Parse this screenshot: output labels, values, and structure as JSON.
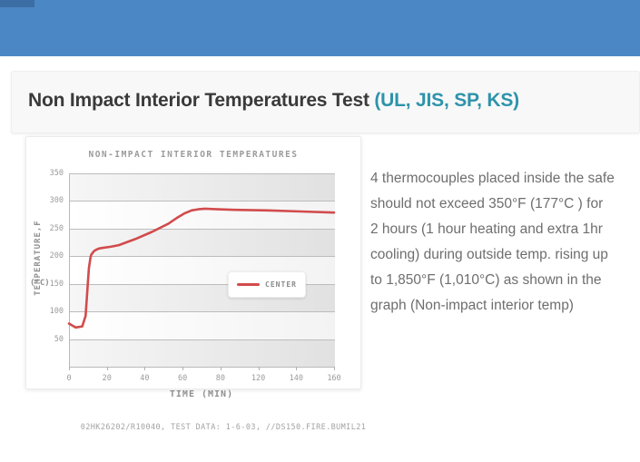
{
  "banner": {
    "color": "#4c87c5"
  },
  "header": {
    "title_main": "Non Impact Interior Temperatures Test",
    "title_accent": " (UL, JIS, SP, KS)",
    "accent_color": "#2e93ab"
  },
  "chart_data": {
    "type": "line",
    "title": "NON-IMPACT INTERIOR TEMPERATURES",
    "xlabel": "TIME (MIN)",
    "ylabel": "TEMPERATURE,F",
    "ylabel_unit": "(°C)",
    "xlim": [
      0,
      160
    ],
    "ylim": [
      0,
      350
    ],
    "x_tick_labels": [
      "0",
      "20",
      "40",
      "60",
      "80",
      "120",
      "140",
      "160"
    ],
    "y_tick_values": [
      350,
      300,
      250,
      200,
      150,
      100,
      50
    ],
    "grid": "horizontal gridlines with alternating gray/white bands",
    "legend_position": "inside lower-right",
    "series": [
      {
        "name": "CENTER",
        "color": "#d24b4c",
        "points": [
          [
            0,
            78
          ],
          [
            4,
            71
          ],
          [
            8,
            73
          ],
          [
            10,
            92
          ],
          [
            11,
            135
          ],
          [
            12,
            178
          ],
          [
            13,
            198
          ],
          [
            13.5,
            203
          ],
          [
            15,
            209
          ],
          [
            16,
            211
          ],
          [
            18,
            214
          ],
          [
            20,
            215
          ],
          [
            25,
            217
          ],
          [
            30,
            220
          ],
          [
            40,
            231
          ],
          [
            50,
            244
          ],
          [
            60,
            259
          ],
          [
            66,
            271
          ],
          [
            70,
            278
          ],
          [
            74,
            283
          ],
          [
            78,
            285
          ],
          [
            82,
            286
          ],
          [
            90,
            285
          ],
          [
            100,
            284
          ],
          [
            120,
            283
          ],
          [
            140,
            281
          ],
          [
            160,
            279
          ]
        ]
      }
    ]
  },
  "description": {
    "lines": [
      "4 thermocouples placed inside the safe",
      "should not exceed 350°F (177°C ) for",
      "2 hours (1 hour heating and extra 1hr",
      "cooling) during outside temp. rising up",
      "to 1,850°F (1,010°C) as shown in the",
      "graph (Non-impact interior temp)"
    ]
  },
  "footer": {
    "caption": "02HK26202/R10040, TEST DATA: 1-6-03, //DS150.FIRE.BUMIL21"
  }
}
